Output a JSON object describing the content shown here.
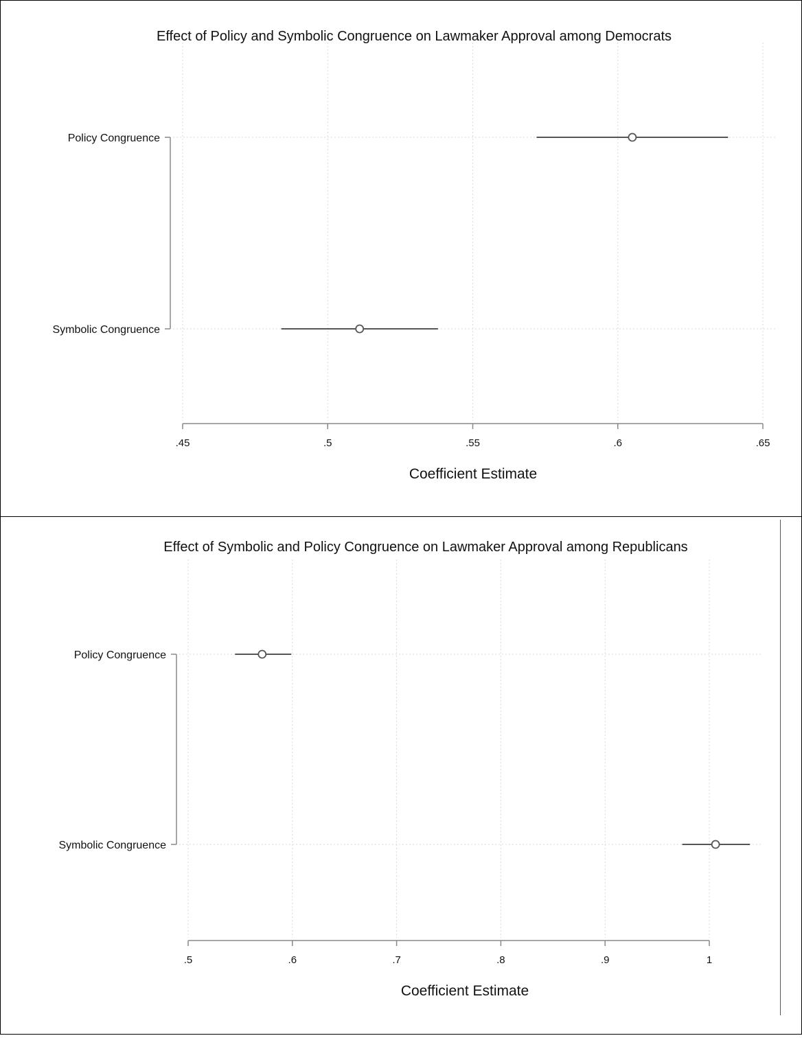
{
  "chart_data": [
    {
      "type": "scatter",
      "title": "Effect of Policy and Symbolic Congruence on Lawmaker Approval among Democrats",
      "xlabel": "Coefficient Estimate",
      "ylabel": "",
      "xlim": [
        0.45,
        0.65
      ],
      "xticks": [
        0.45,
        0.5,
        0.55,
        0.6,
        0.65
      ],
      "xtick_labels": [
        ".45",
        ".5",
        ".55",
        ".6",
        ".65"
      ],
      "categories": [
        "Policy Congruence",
        "Symbolic Congruence"
      ],
      "estimates": [
        0.605,
        0.511
      ],
      "ci_low": [
        0.572,
        0.484
      ],
      "ci_high": [
        0.638,
        0.538
      ],
      "grid": true,
      "marker": "hollow-circle",
      "color": "#555555"
    },
    {
      "type": "scatter",
      "title": "Effect of Symbolic and Policy Congruence on Lawmaker Approval among Republicans",
      "xlabel": "Coefficient Estimate",
      "ylabel": "",
      "xlim": [
        0.5,
        1.0
      ],
      "xticks": [
        0.5,
        0.6,
        0.7,
        0.8,
        0.9,
        1.0
      ],
      "xtick_labels": [
        ".5",
        ".6",
        ".7",
        ".8",
        ".9",
        "1"
      ],
      "categories": [
        "Policy Congruence",
        "Symbolic Congruence"
      ],
      "estimates": [
        0.571,
        1.006
      ],
      "ci_low": [
        0.545,
        0.974
      ],
      "ci_high": [
        0.599,
        1.039
      ],
      "grid": true,
      "marker": "hollow-circle",
      "color": "#555555"
    }
  ]
}
